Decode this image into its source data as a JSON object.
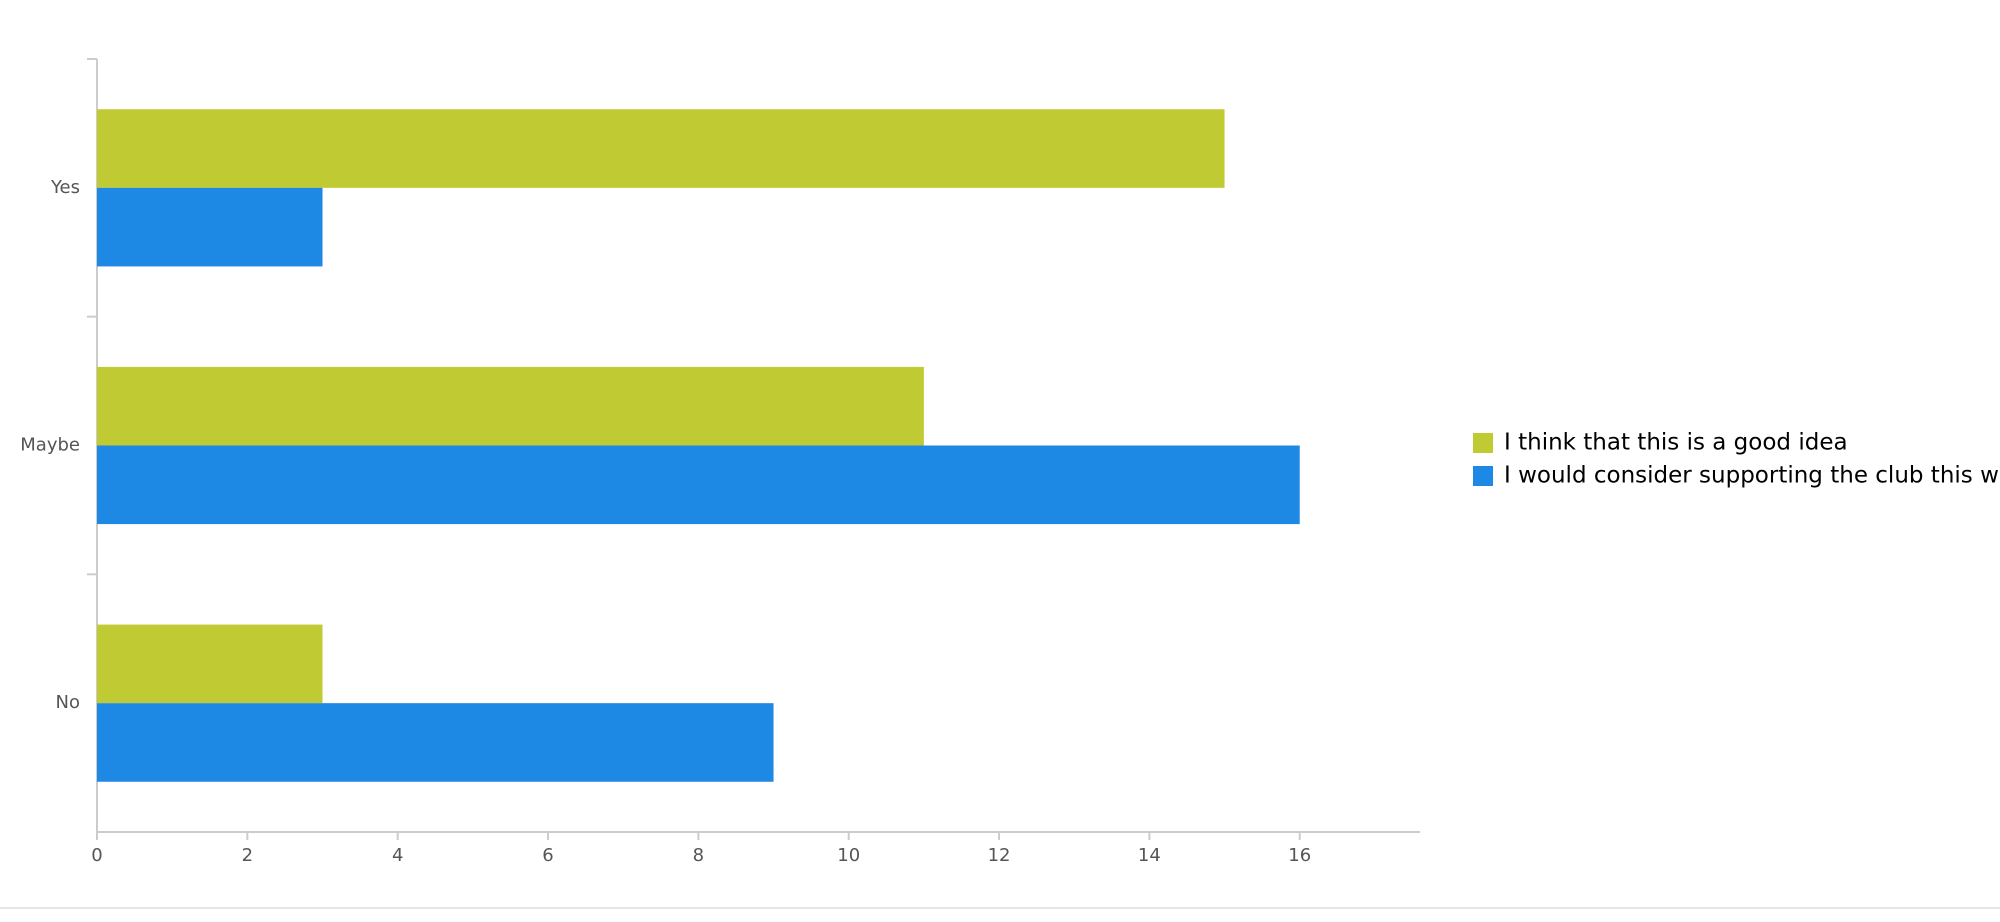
{
  "chart_data": {
    "type": "bar",
    "orientation": "horizontal",
    "categories": [
      "Yes",
      "Maybe",
      "No"
    ],
    "series": [
      {
        "name": "I think that this is a good idea",
        "color": "#c0ca33",
        "values": [
          15,
          11,
          3
        ]
      },
      {
        "name": "I would consider supporting the club this way",
        "color": "#1e88e5",
        "values": [
          3,
          16,
          9
        ]
      }
    ],
    "xlim": [
      0,
      17.6
    ],
    "xticks": [
      0,
      2,
      4,
      6,
      8,
      10,
      12,
      14,
      16
    ],
    "grid": false,
    "legend": "right"
  }
}
